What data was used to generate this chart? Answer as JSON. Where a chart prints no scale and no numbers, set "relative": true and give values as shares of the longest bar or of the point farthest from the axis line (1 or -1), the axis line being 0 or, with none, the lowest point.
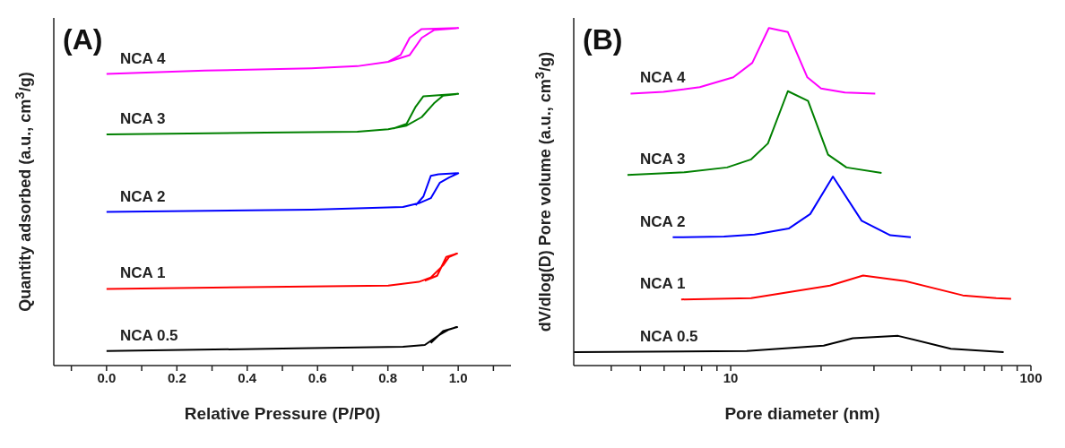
{
  "chart_data": [
    {
      "type": "line",
      "title": "(A)",
      "xlabel": "Relative Pressure (P/P0)",
      "ylabel": "Quantity adsorbed (a.u., cm$^{3}$/g)",
      "relative": true,
      "xlim": [
        -0.15,
        1.15
      ],
      "xticks": [
        {
          "value": -0.1,
          "label": null
        },
        {
          "value": 0,
          "label": "0.0"
        },
        {
          "value": 0.1,
          "label": null
        },
        {
          "value": 0.2,
          "label": "0.2"
        },
        {
          "value": 0.3,
          "label": null
        },
        {
          "value": 0.4,
          "label": "0.4"
        },
        {
          "value": 0.5,
          "label": null
        },
        {
          "value": 0.6,
          "label": "0.6"
        },
        {
          "value": 0.7,
          "label": null
        },
        {
          "value": 0.8,
          "label": "0.8"
        },
        {
          "value": 0.9,
          "label": null
        },
        {
          "value": 1,
          "label": "1.0"
        },
        {
          "value": 1.1,
          "label": null
        }
      ],
      "grid": false,
      "series": [
        {
          "name": "NCA 4",
          "color": "#ff00ff",
          "x": [
            0,
            0.279,
            0.582,
            0.713,
            0.801,
            0.862,
            0.896,
            0.931,
            1.0,
            0.896,
            0.862,
            0.836,
            0.801
          ],
          "values": [
            0.864,
            0.874,
            0.881,
            0.887,
            0.9,
            0.92,
            0.971,
            0.994,
            1.0,
            0.997,
            0.971,
            0.92,
            0.9
          ]
        },
        {
          "name": "NCA 3",
          "color": "#008000",
          "x": [
            0,
            0.452,
            0.713,
            0.801,
            0.853,
            0.896,
            0.931,
            0.957,
            1.0,
            0.901,
            0.879,
            0.853,
            0.817
          ],
          "values": [
            0.685,
            0.69,
            0.693,
            0.7,
            0.711,
            0.736,
            0.777,
            0.8,
            0.805,
            0.798,
            0.767,
            0.716,
            0.703
          ]
        },
        {
          "name": "NCA 2",
          "color": "#0000ff",
          "x": [
            0,
            0.582,
            0.843,
            0.888,
            0.922,
            0.948,
            0.974,
            1.0,
            0.944,
            0.922,
            0.901,
            0.879
          ],
          "values": [
            0.455,
            0.462,
            0.47,
            0.481,
            0.496,
            0.542,
            0.557,
            0.57,
            0.567,
            0.562,
            0.501,
            0.475
          ]
        },
        {
          "name": "NCA 1",
          "color": "#ff0000",
          "x": [
            0,
            0.801,
            0.888,
            0.922,
            0.957,
            0.974,
            0.997,
            0.966,
            0.94,
            0.905
          ],
          "values": [
            0.227,
            0.237,
            0.248,
            0.261,
            0.297,
            0.322,
            0.332,
            0.322,
            0.266,
            0.251
          ]
        },
        {
          "name": "NCA 0.5",
          "color": "#000000",
          "x": [
            0,
            0.54,
            0.843,
            0.905,
            0.948,
            0.974,
            0.997,
            0.957,
            0.922
          ],
          "values": [
            0.043,
            0.051,
            0.056,
            0.061,
            0.092,
            0.107,
            0.114,
            0.102,
            0.067
          ]
        }
      ]
    },
    {
      "type": "line",
      "title": "(B)",
      "xlabel": "Pore diameter (nm)",
      "ylabel": "dV/dlog(D)  Pore volume (a.u., cm$^{3}$/g)",
      "relative": true,
      "log": "x",
      "xlim": [
        3,
        100
      ],
      "xticks": [
        {
          "value": 4,
          "label": null
        },
        {
          "value": 5,
          "label": null
        },
        {
          "value": 6,
          "label": null
        },
        {
          "value": 7,
          "label": null
        },
        {
          "value": 8,
          "label": null
        },
        {
          "value": 9,
          "label": null
        },
        10,
        {
          "value": 20,
          "label": null
        },
        {
          "value": 30,
          "label": null
        },
        {
          "value": 40,
          "label": null
        },
        {
          "value": 50,
          "label": null
        },
        {
          "value": 60,
          "label": null
        },
        {
          "value": 70,
          "label": null
        },
        {
          "value": 80,
          "label": null
        },
        {
          "value": 90,
          "label": null
        },
        100
      ],
      "grid": false,
      "series": [
        {
          "name": "NCA 4",
          "color": "#ff00ff",
          "x": [
            4.64,
            5.97,
            7.89,
            10.2,
            11.8,
            13.4,
            15.5,
            18.0,
            20.0,
            24.0,
            30.3
          ],
          "values": [
            0.806,
            0.811,
            0.825,
            0.854,
            0.897,
            1.0,
            0.988,
            0.854,
            0.821,
            0.809,
            0.806
          ]
        },
        {
          "name": "NCA 3",
          "color": "#008000",
          "x": [
            4.53,
            7.03,
            9.72,
            11.7,
            13.3,
            15.5,
            18.1,
            21.1,
            24.3,
            31.8
          ],
          "values": [
            0.565,
            0.573,
            0.587,
            0.611,
            0.658,
            0.813,
            0.784,
            0.625,
            0.587,
            0.571
          ]
        },
        {
          "name": "NCA 2",
          "color": "#0000ff",
          "x": [
            6.41,
            9.5,
            12.0,
            15.6,
            18.4,
            21.9,
            27.3,
            34.0,
            39.8
          ],
          "values": [
            0.38,
            0.382,
            0.388,
            0.406,
            0.449,
            0.56,
            0.429,
            0.386,
            0.38
          ]
        },
        {
          "name": "NCA 1",
          "color": "#ff0000",
          "x": [
            6.84,
            11.7,
            21.4,
            27.6,
            38.2,
            59.3,
            76.6,
            85.9
          ],
          "values": [
            0.196,
            0.2,
            0.237,
            0.267,
            0.25,
            0.208,
            0.2,
            0.198
          ]
        },
        {
          "name": "NCA 0.5",
          "color": "#000000",
          "x": [
            3,
            11.3,
            20.4,
            25.5,
            36.1,
            54.1,
            81.1
          ],
          "values": [
            0.04,
            0.043,
            0.059,
            0.081,
            0.088,
            0.05,
            0.04
          ]
        }
      ]
    }
  ]
}
